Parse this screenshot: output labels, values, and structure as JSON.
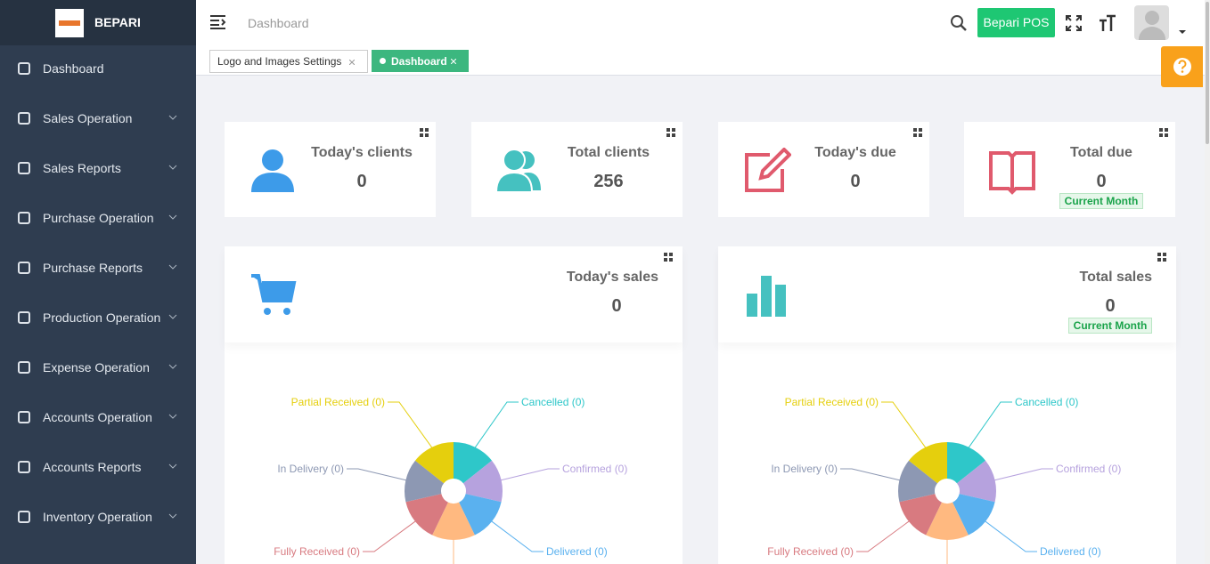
{
  "brand": "BEPARI",
  "sidebar": {
    "items": [
      "Dashboard",
      "Sales Operation",
      "Sales Reports",
      "Purchase Operation",
      "Purchase Reports",
      "Production Operation",
      "Expense Operation",
      "Accounts Operation",
      "Accounts Reports",
      "Inventory Operation"
    ]
  },
  "topbar": {
    "breadcrumb": "Dashboard",
    "pos_button": "Bepari POS"
  },
  "tabs": [
    "Logo and Images Settings",
    "Dashboard"
  ],
  "stat_cards": [
    {
      "title": "Today's clients",
      "value": "0"
    },
    {
      "title": "Total clients",
      "value": "256"
    },
    {
      "title": "Today's due",
      "value": "0"
    },
    {
      "title": "Total due",
      "value": "0",
      "badge": "Current Month"
    }
  ],
  "sales_cards": [
    {
      "title": "Today's sales",
      "value": "0"
    },
    {
      "title": "Total sales",
      "value": "0",
      "badge": "Current Month"
    }
  ],
  "charts": [
    {
      "slices": [
        {
          "label": "Cancelled (0)",
          "color": "#2ec7c9"
        },
        {
          "label": "Confirmed (0)",
          "color": "#b6a2de"
        },
        {
          "label": "Delivered (0)",
          "color": "#5ab1ef"
        },
        {
          "color": "#ffb980"
        },
        {
          "label": "Fully Received (0)",
          "color": "#d87a80"
        },
        {
          "label": "In Delivery (0)",
          "color": "#8d98b3"
        },
        {
          "label": "Partial Received (0)",
          "color": "#e5cf0d"
        }
      ]
    },
    {
      "slices": [
        {
          "label": "Cancelled (0)",
          "color": "#2ec7c9"
        },
        {
          "label": "Confirmed (0)",
          "color": "#b6a2de"
        },
        {
          "label": "Delivered (0)",
          "color": "#5ab1ef"
        },
        {
          "color": "#ffb980"
        },
        {
          "label": "Fully Received (0)",
          "color": "#d87a80"
        },
        {
          "label": "In Delivery (0)",
          "color": "#8d98b3"
        },
        {
          "label": "Partial Received (0)",
          "color": "#e5cf0d"
        }
      ]
    }
  ]
}
